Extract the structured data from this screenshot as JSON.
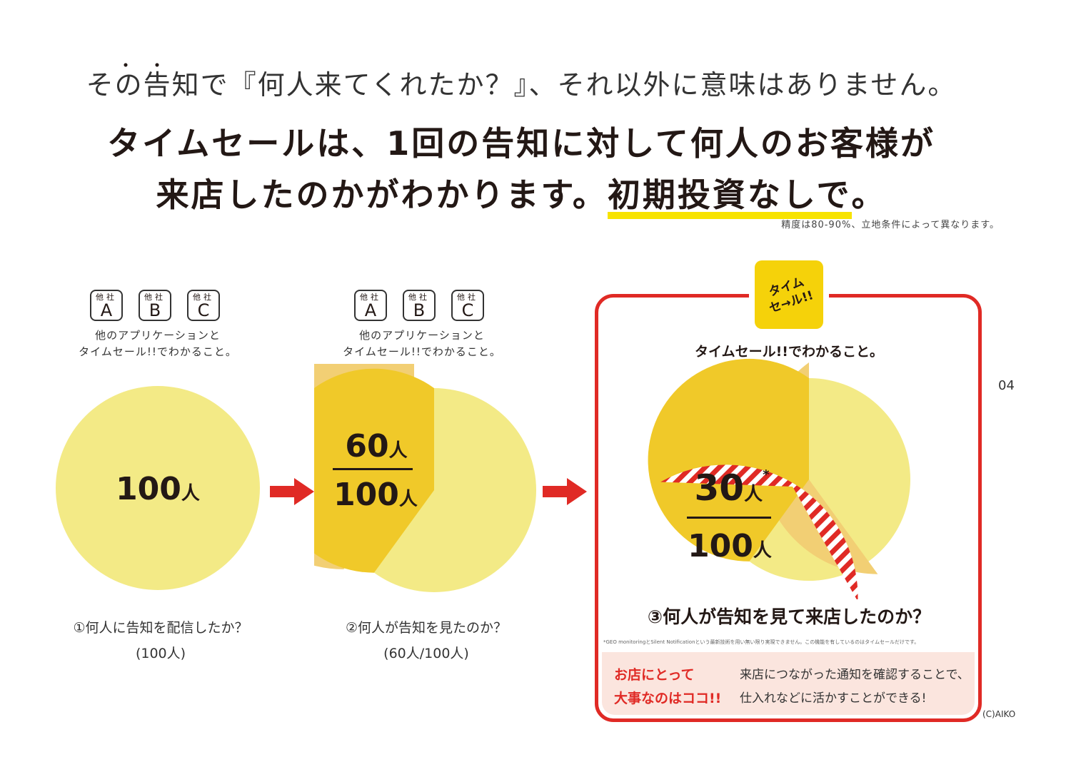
{
  "header": {
    "dots": "・・",
    "line1": "その告知で『何人来てくれたか？』、それ以外に意味はありません。",
    "line2": "タイムセールは、1回の告知に対して何人のお客様が",
    "line3_main": "来店したのかがわかります。",
    "line3_highlight": "初期投資なしで",
    "line3_end": "。",
    "note": "精度は80-90%、立地条件によって異なります。"
  },
  "page_number": "04",
  "copyright": "(C)AIKO",
  "competitors": {
    "items": [
      {
        "small": "他社",
        "letter": "A"
      },
      {
        "small": "他社",
        "letter": "B"
      },
      {
        "small": "他社",
        "letter": "C"
      }
    ],
    "caption_line1": "他のアプリケーションと",
    "caption_line2": "タイムセール!!でわかること。"
  },
  "step1": {
    "value_num": "100",
    "value_unit": "人",
    "caption": "①何人に告知を配信したか？",
    "sub": "(100人)"
  },
  "step2": {
    "num_top": "60",
    "num_top_unit": "人",
    "num_bottom": "100",
    "num_bottom_unit": "人",
    "caption": "②何人が告知を見たのか？",
    "sub": "(60人/100人)"
  },
  "step3": {
    "logo_line1": "タイム",
    "logo_line2": "セ→ル!!",
    "title": "タイムセール!!でわかること。",
    "num_top": "30",
    "num_top_unit": "人",
    "asterisk": "*",
    "num_bottom": "100",
    "num_bottom_unit": "人",
    "caption": "③何人が告知を見て来店したのか？",
    "footnote": "*GEO monitoringとSilent Notificationという最新技術を用い無い限り実現できません。この機能を有しているのはタイムセールだけです。",
    "important_line1": "お店にとって",
    "important_line2": "大事なのはココ!!",
    "desc_line1": "来店につながった通知を確認することで、",
    "desc_line2": "仕入れなどに活かすことができる!"
  },
  "chart_data": {
    "type": "pie",
    "total": 100,
    "stages": [
      {
        "label": "①何人に告知を配信したか？",
        "value": 100
      },
      {
        "label": "②何人が告知を見たのか？",
        "value": 60
      },
      {
        "label": "③何人が告知を見て来店したのか？",
        "value": 30
      }
    ]
  },
  "colors": {
    "pie_base": "#f3ea86",
    "pie_viewed": "#f0c929",
    "pie_viewed_edge": "#f2cf74",
    "visited_stripe": "#e02a25",
    "accent_red": "#e02a25",
    "highlight_yellow": "#f7e300"
  }
}
